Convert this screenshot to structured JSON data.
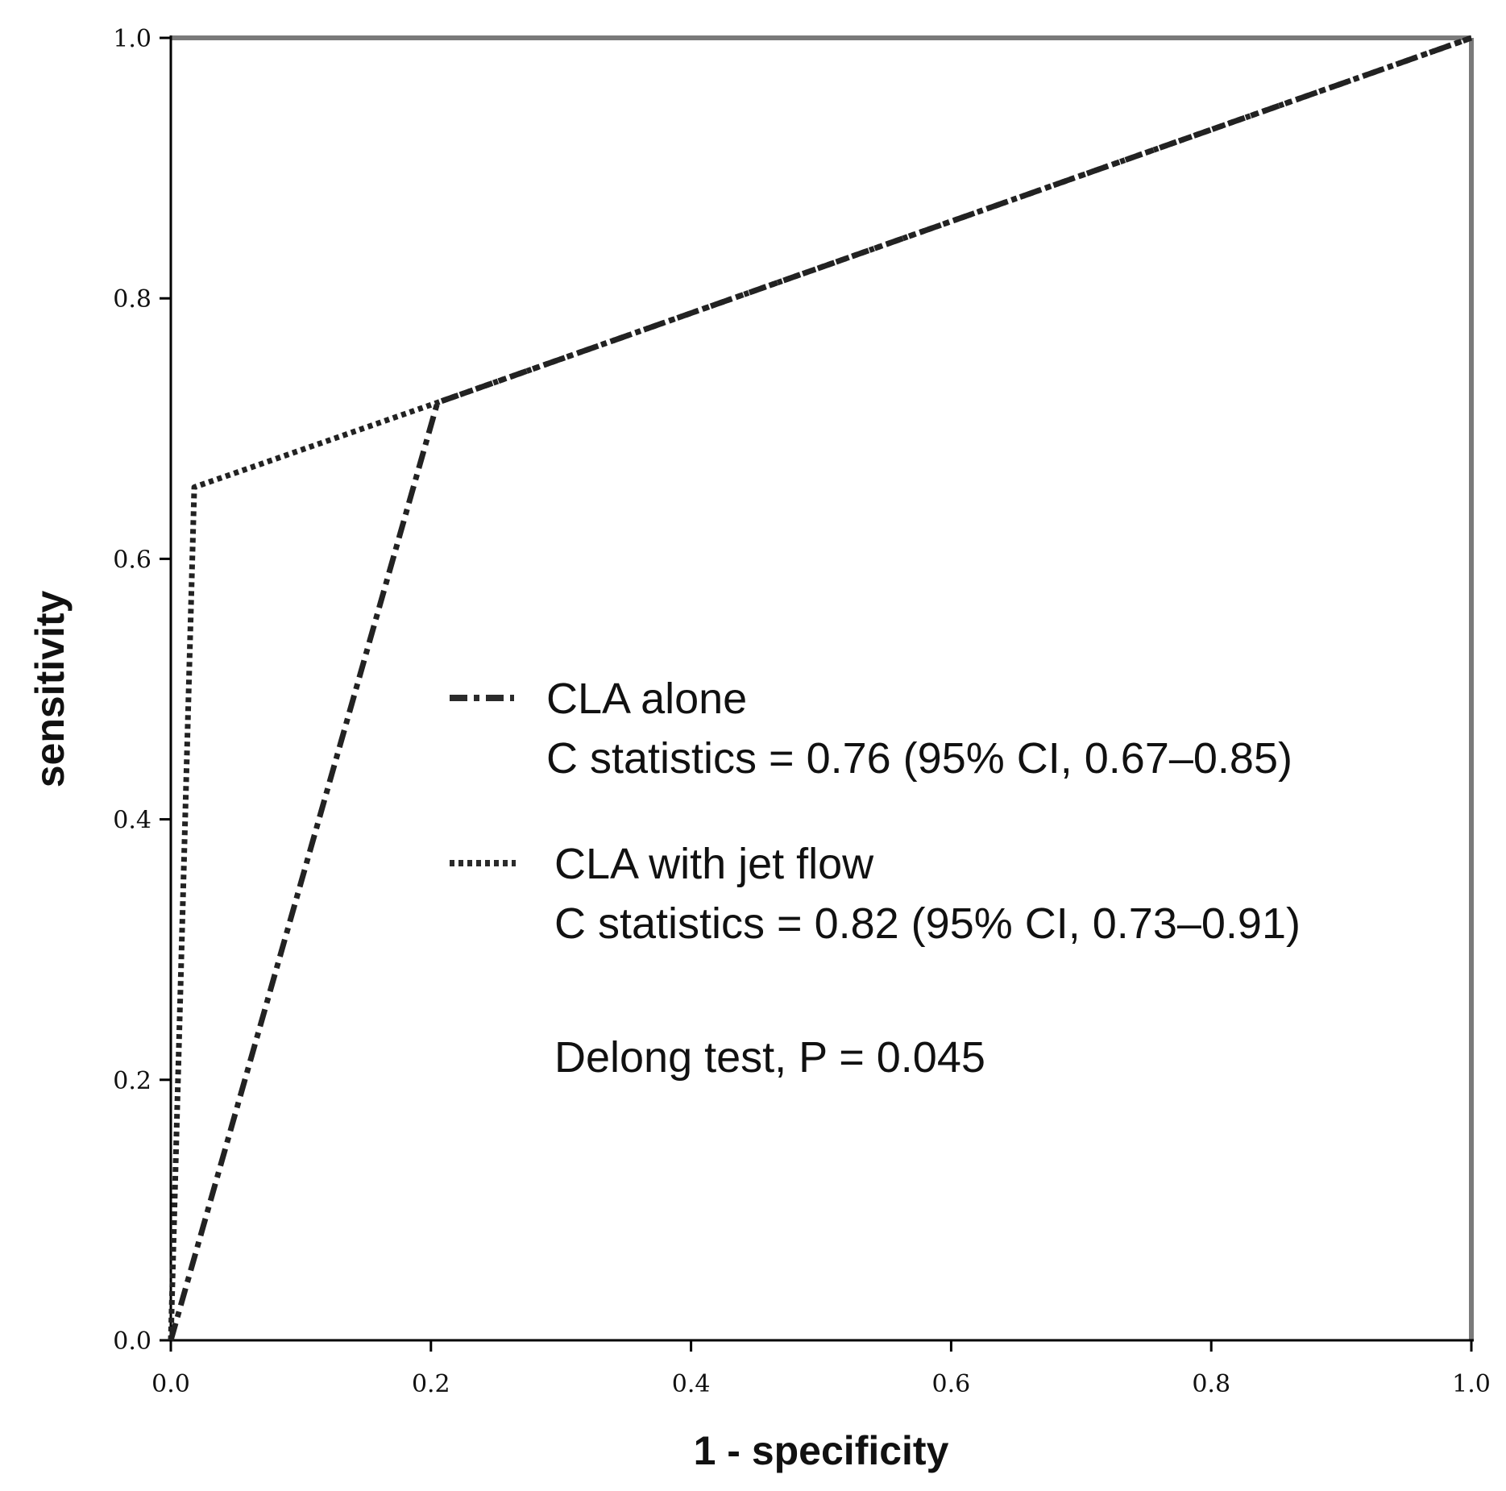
{
  "chart_data": {
    "type": "line",
    "title": "",
    "xlabel": "1 - specificity",
    "ylabel": "sensitivity",
    "xlim": [
      0,
      1
    ],
    "ylim": [
      0,
      1
    ],
    "xticks": [
      "0.0",
      "0.2",
      "0.4",
      "0.6",
      "0.8",
      "1.0"
    ],
    "yticks": [
      "0.0",
      "0.2",
      "0.4",
      "0.6",
      "0.8",
      "1.0"
    ],
    "grid": false,
    "legend_position": "center-right",
    "series": [
      {
        "name": "CLA alone",
        "stat": "C statistics = 0.76 (95% CI, 0.67–0.85)",
        "style": "dash-dot",
        "color": "#222222",
        "x": [
          0.0,
          0.205,
          1.0
        ],
        "y": [
          0.0,
          0.72,
          1.0
        ]
      },
      {
        "name": "CLA with jet flow",
        "stat": "C statistics = 0.82 (95% CI, 0.73–0.91)",
        "style": "dotted",
        "color": "#222222",
        "x": [
          0.0,
          0.018,
          0.205,
          1.0
        ],
        "y": [
          0.0,
          0.655,
          0.72,
          1.0
        ]
      }
    ],
    "annotation": "Delong test, P = 0.045"
  }
}
